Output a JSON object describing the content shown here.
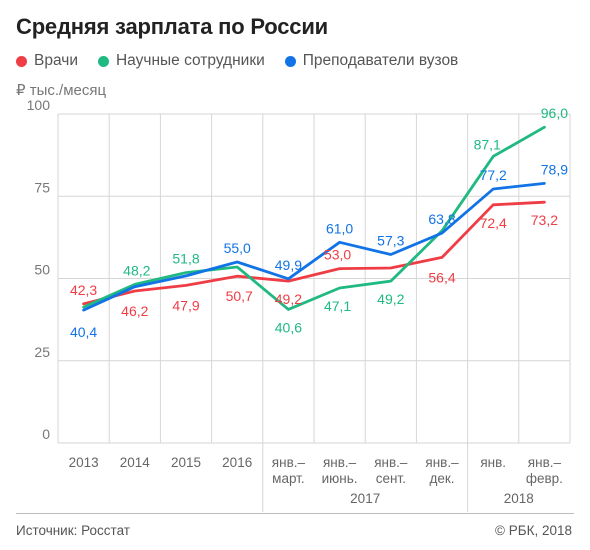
{
  "title": "Средняя зарплата по России",
  "unit_label": "₽ тыс./месяц",
  "footer": {
    "source": "Источник: Росстат",
    "copyright": "© РБК, 2018"
  },
  "chart_data": {
    "type": "line",
    "title": "Средняя зарплата по России",
    "ylabel": "₽ тыс./месяц",
    "ylim": [
      0,
      100
    ],
    "yticks": [
      0,
      25,
      50,
      75,
      100
    ],
    "grid": true,
    "legend_position": "top-left",
    "categories": [
      "2013",
      "2014",
      "2015",
      "2016",
      "янв.–март.",
      "янв.–июнь.",
      "янв.–сент.",
      "янв.–дек.",
      "янв.",
      "янв.–февр."
    ],
    "category_lines": [
      [
        "2013"
      ],
      [
        "2014"
      ],
      [
        "2015"
      ],
      [
        "2016"
      ],
      [
        "янв.–",
        "март."
      ],
      [
        "янв.–",
        "июнь."
      ],
      [
        "янв.–",
        "сент."
      ],
      [
        "янв.–",
        "дек."
      ],
      [
        "янв."
      ],
      [
        "янв.–",
        "февр."
      ]
    ],
    "year_groups": [
      {
        "label": "2017",
        "from": 4,
        "to": 7
      },
      {
        "label": "2018",
        "from": 8,
        "to": 9
      }
    ],
    "series": [
      {
        "name": "Врачи",
        "color": "#ef3d45",
        "values": [
          42.3,
          46.2,
          47.9,
          50.7,
          49.2,
          53.0,
          53.2,
          56.4,
          72.4,
          73.2
        ],
        "labels": [
          "42,3",
          "46,2",
          "47,9",
          "50,7",
          "49,2",
          "53,0",
          "",
          "56,4",
          "72,4",
          "73,2"
        ]
      },
      {
        "name": "Научные сотрудники",
        "color": "#1fb981",
        "values": [
          41.3,
          48.2,
          51.8,
          53.5,
          40.6,
          47.1,
          49.2,
          64.5,
          87.1,
          96.0
        ],
        "labels": [
          "",
          "48,2",
          "51,8",
          "",
          "40,6",
          "47,1",
          "49,2",
          "",
          "87,1",
          "96,0"
        ]
      },
      {
        "name": "Преподаватели вузов",
        "color": "#1273e6",
        "values": [
          40.4,
          47.5,
          50.8,
          55.0,
          49.9,
          61.0,
          57.3,
          63.8,
          77.2,
          78.9
        ],
        "labels": [
          "40,4",
          "",
          "",
          "55,0",
          "49,9",
          "61,0",
          "57,3",
          "63,8",
          "77,2",
          "78,9"
        ]
      }
    ]
  }
}
